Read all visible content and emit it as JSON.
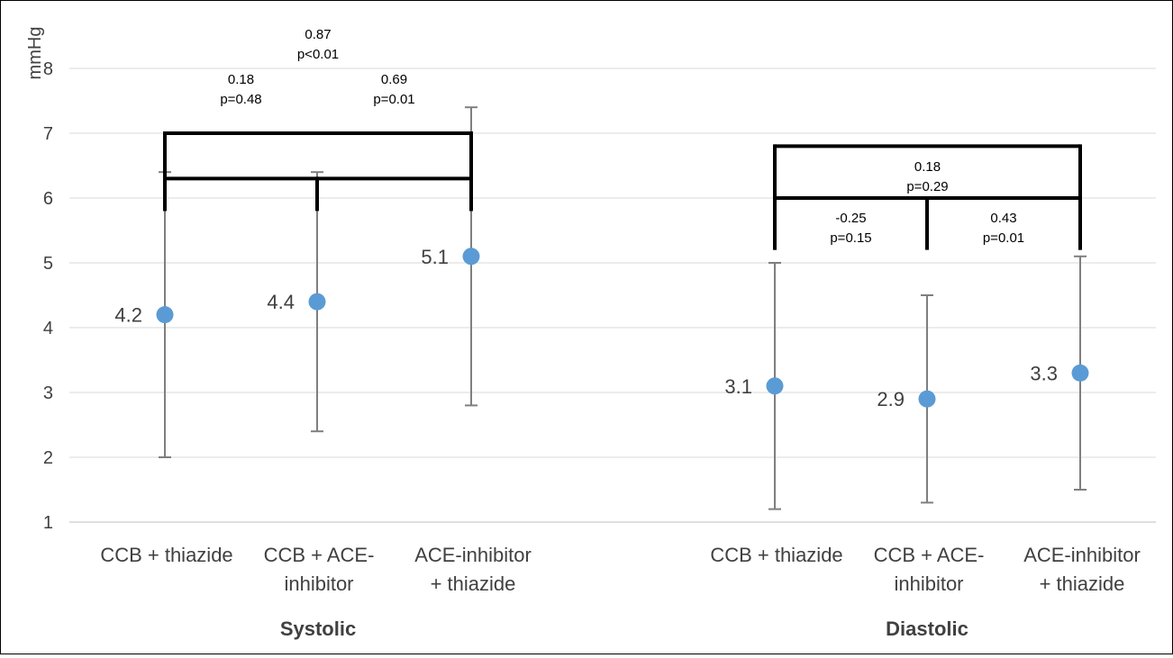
{
  "chart_data": {
    "type": "scatter",
    "ylabel": "mmHg",
    "ylim": [
      1,
      8
    ],
    "yticks": [
      1,
      2,
      3,
      4,
      5,
      6,
      7,
      8
    ],
    "grid": true,
    "marker_color": "#5b9bd5",
    "errorbar_color": "#7f7f7f",
    "groups": [
      {
        "name": "Systolic",
        "points": [
          {
            "category": "CCB + thiazide",
            "value": 4.2,
            "lower": 2.0,
            "upper": 6.4,
            "label": "4.2"
          },
          {
            "category": "CCB + ACE-inhibitor",
            "value": 4.4,
            "lower": 2.4,
            "upper": 6.4,
            "label": "4.4"
          },
          {
            "category": "ACE-inhibitor + thiazide",
            "value": 5.1,
            "lower": 2.8,
            "upper": 7.4,
            "label": "5.1"
          }
        ],
        "comparisons": [
          {
            "from": 0,
            "to": 2,
            "level": 7.0,
            "leg_bottom": 5.8,
            "text": [
              "0.87",
              "p<0.01"
            ]
          },
          {
            "from": 0,
            "to": 1,
            "level": 6.3,
            "leg_bottom": 5.8,
            "text": [
              "0.18",
              "p=0.48"
            ]
          },
          {
            "from": 1,
            "to": 2,
            "level": 6.3,
            "leg_bottom": 5.8,
            "text": [
              "0.69",
              "p=0.01"
            ]
          }
        ]
      },
      {
        "name": "Diastolic",
        "points": [
          {
            "category": "CCB + thiazide",
            "value": 3.1,
            "lower": 1.2,
            "upper": 5.0,
            "label": "3.1"
          },
          {
            "category": "CCB + ACE-inhibitor",
            "value": 2.9,
            "lower": 1.3,
            "upper": 4.5,
            "label": "2.9"
          },
          {
            "category": "ACE-inhibitor + thiazide",
            "value": 3.3,
            "lower": 1.5,
            "upper": 5.1,
            "label": "3.3"
          }
        ],
        "comparisons": [
          {
            "from": 0,
            "to": 2,
            "level": 6.8,
            "leg_bottom": 5.2,
            "text": [
              "0.18",
              "p=0.29"
            ]
          },
          {
            "from": 0,
            "to": 1,
            "level": 6.0,
            "leg_bottom": 5.2,
            "text": [
              "-0.25",
              "p=0.15"
            ]
          },
          {
            "from": 1,
            "to": 2,
            "level": 6.0,
            "leg_bottom": 5.2,
            "text": [
              "0.43",
              "p=0.01"
            ]
          }
        ]
      }
    ],
    "category_lines": {
      "CCB + thiazide": [
        "CCB + thiazide"
      ],
      "CCB + ACE-inhibitor": [
        "CCB + ACE-",
        "inhibitor"
      ],
      "ACE-inhibitor + thiazide": [
        "ACE-inhibitor",
        "+ thiazide"
      ]
    }
  }
}
